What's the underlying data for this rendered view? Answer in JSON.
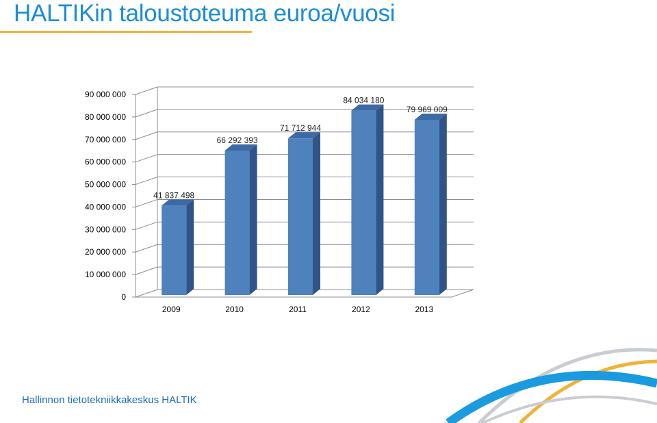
{
  "header": {
    "title": "HALTIKin taloustoteuma euroa/vuosi"
  },
  "footer": {
    "organization": "Hallinnon tietotekniikkakeskus HALTIK"
  },
  "colors": {
    "title": "#1a8dd8",
    "accent_rule": "#f3b13a",
    "bar_front": "#4f81bd",
    "bar_side": "#2f5487",
    "bar_top": "#3d6aa5",
    "swoosh_blue": "#1a9be0",
    "swoosh_orange": "#f3b13a",
    "swoosh_grey": "#c9ccd0"
  },
  "chart_data": {
    "type": "bar",
    "style": "3d-column",
    "title": "",
    "xlabel": "",
    "ylabel": "",
    "categories": [
      "2009",
      "2010",
      "2011",
      "2012",
      "2013"
    ],
    "values": [
      41837498,
      66292393,
      71712944,
      84034180,
      79969009
    ],
    "data_labels": [
      "41 837 498",
      "66 292 393",
      "71 712 944",
      "84 034 180",
      "79 969 009"
    ],
    "ylim": [
      0,
      90000000
    ],
    "yticks": [
      0,
      10000000,
      20000000,
      30000000,
      40000000,
      50000000,
      60000000,
      70000000,
      80000000,
      90000000
    ],
    "ytick_labels": [
      "0",
      "10 000 000",
      "20 000 000",
      "30 000 000",
      "40 000 000",
      "50 000 000",
      "60 000 000",
      "70 000 000",
      "80 000 000",
      "90 000 000"
    ],
    "grid": true,
    "legend": "none"
  }
}
